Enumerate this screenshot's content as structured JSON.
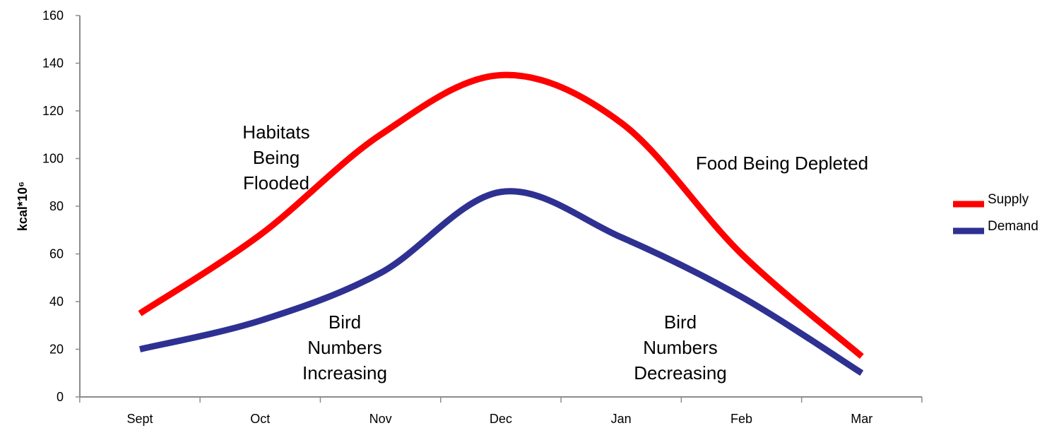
{
  "chart_data": {
    "type": "line",
    "title": "",
    "xlabel": "",
    "ylabel": "kcal*10⁶",
    "ylim": [
      0,
      160
    ],
    "yticks": [
      0,
      20,
      40,
      60,
      80,
      100,
      120,
      140,
      160
    ],
    "categories": [
      "Sept",
      "Oct",
      "Nov",
      "Dec",
      "Jan",
      "Feb",
      "Mar"
    ],
    "smooth": true,
    "grid": false,
    "legend_position": "right",
    "series": [
      {
        "name": "Supply",
        "color": "#ff0000",
        "values": [
          35,
          68,
          110,
          135,
          115,
          60,
          17
        ]
      },
      {
        "name": "Demand",
        "color": "#2e3192",
        "values": [
          20,
          32,
          52,
          86,
          67,
          42,
          10
        ]
      }
    ],
    "annotations": [
      {
        "lines": [
          "Habitats",
          "Being",
          "Flooded"
        ]
      },
      {
        "lines": [
          "Bird",
          "Numbers",
          "Increasing"
        ]
      },
      {
        "lines": [
          "Bird",
          "Numbers",
          "Decreasing"
        ]
      },
      {
        "lines": [
          "Food Being Depleted"
        ]
      }
    ]
  }
}
